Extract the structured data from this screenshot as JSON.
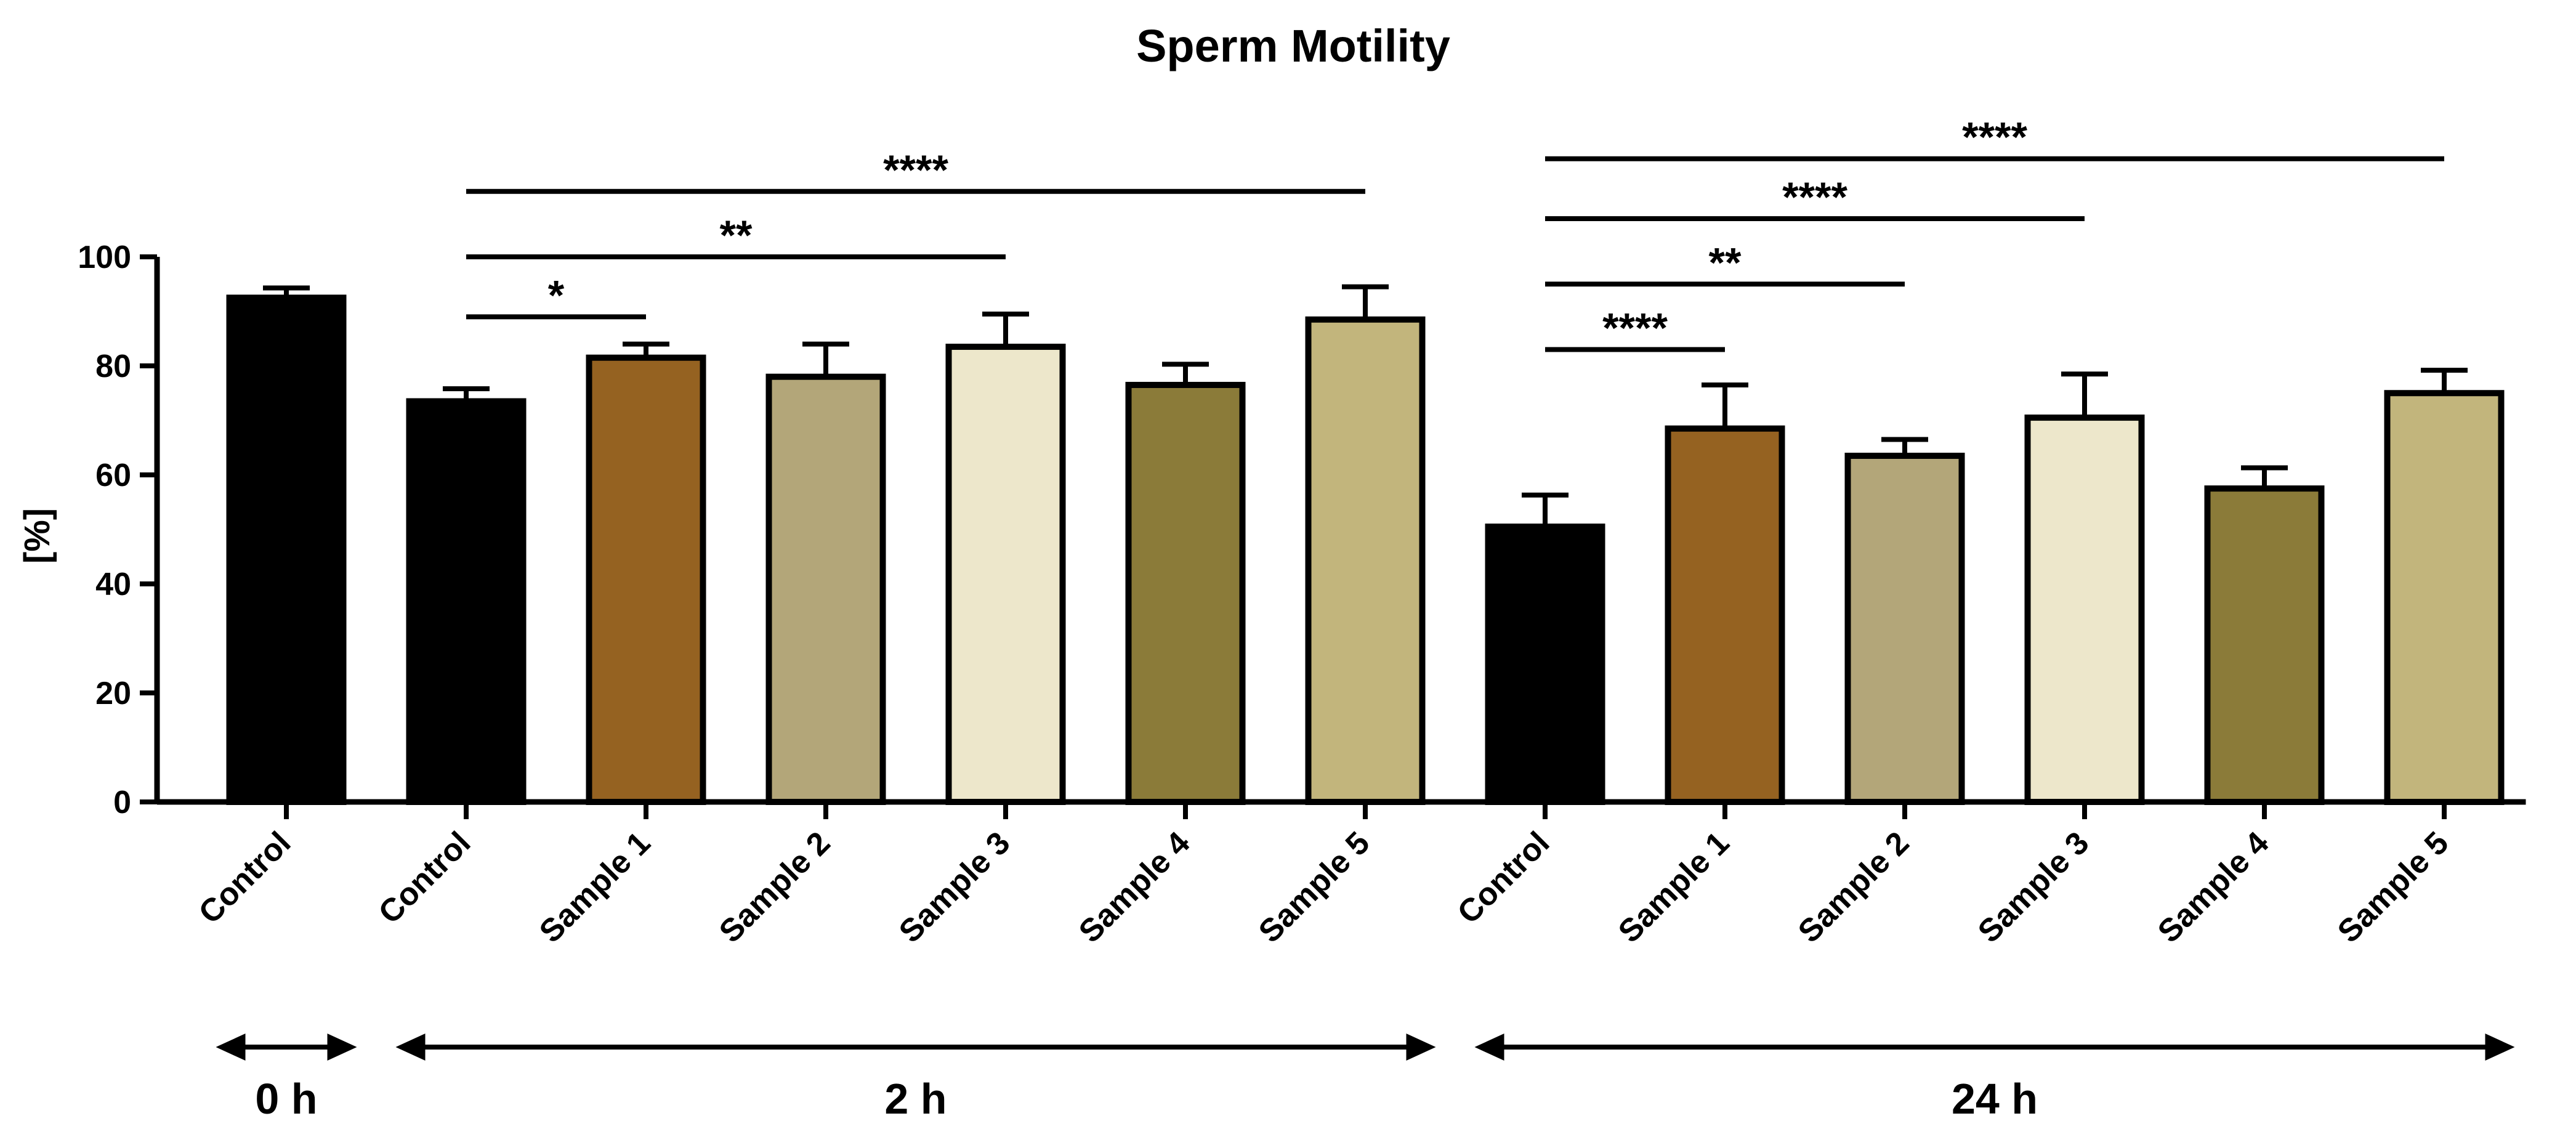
{
  "chart_data": {
    "type": "bar",
    "title": "Sperm Motility",
    "xlabel": "",
    "ylabel": "[%]",
    "ylim": [
      0,
      100
    ],
    "yticks": [
      0,
      20,
      40,
      60,
      80,
      100
    ],
    "grid": false,
    "categories": [
      "Control",
      "Control",
      "Sample 1",
      "Sample 2",
      "Sample 3",
      "Sample 4",
      "Sample 5",
      "Control",
      "Sample 1",
      "Sample 2",
      "Sample 3",
      "Sample 4",
      "Sample 5"
    ],
    "values": [
      92.5,
      73.5,
      81.5,
      78,
      83.5,
      76.5,
      88.5,
      50.5,
      68.5,
      63.5,
      70.5,
      57.5,
      75
    ],
    "errors": [
      1.8,
      2.3,
      2.5,
      6,
      6,
      3.8,
      6,
      5.8,
      8,
      3,
      8,
      3.8,
      4.2
    ],
    "colors": [
      "#000000",
      "#000000",
      "#956221",
      "#b3a679",
      "#ede7cb",
      "#8b7b39",
      "#c2b57c",
      "#000000",
      "#956221",
      "#b3a679",
      "#ede7cb",
      "#8b7b39",
      "#c2b57c"
    ],
    "time_groups": [
      {
        "label": "0 h",
        "start": 0,
        "end": 0
      },
      {
        "label": "2 h",
        "start": 1,
        "end": 6
      },
      {
        "label": "24 h",
        "start": 7,
        "end": 12
      }
    ],
    "significance": [
      {
        "from": 1,
        "to": 2,
        "label": "*",
        "y": 89
      },
      {
        "from": 1,
        "to": 4,
        "label": "**",
        "y": 100
      },
      {
        "from": 1,
        "to": 6,
        "label": "****",
        "y": 112
      },
      {
        "from": 7,
        "to": 8,
        "label": "****",
        "y": 83
      },
      {
        "from": 7,
        "to": 9,
        "label": "**",
        "y": 95
      },
      {
        "from": 7,
        "to": 10,
        "label": "****",
        "y": 107
      },
      {
        "from": 7,
        "to": 12,
        "label": "****",
        "y": 118
      }
    ]
  }
}
